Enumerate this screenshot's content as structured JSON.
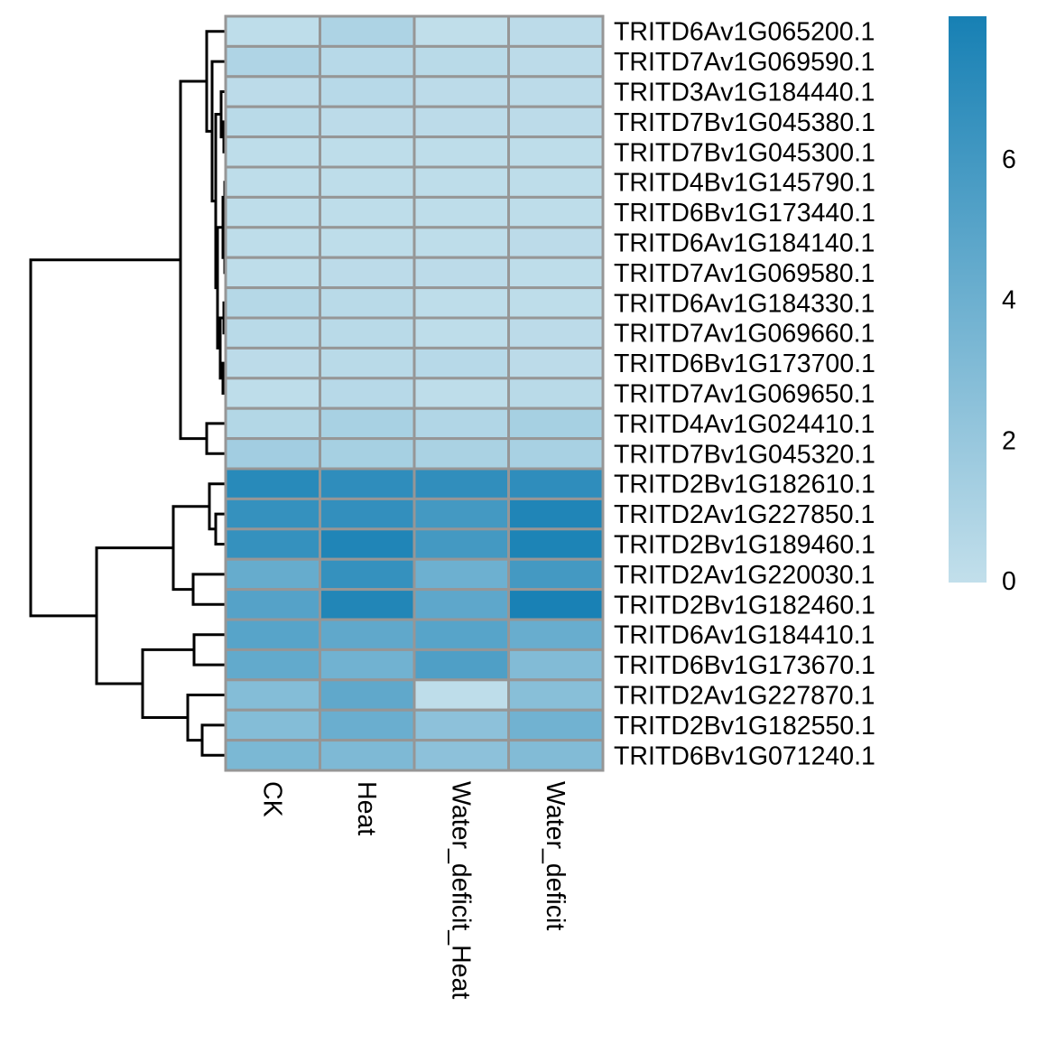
{
  "chart_data": {
    "type": "heatmap",
    "title": "",
    "columns": [
      "CK",
      "Heat",
      "Water_deficit_Heat",
      "Water_deficit"
    ],
    "rows": [
      "TRITD6Av1G065200.1",
      "TRITD7Av1G069590.1",
      "TRITD3Av1G184440.1",
      "TRITD7Bv1G045380.1",
      "TRITD7Bv1G045300.1",
      "TRITD4Bv1G145790.1",
      "TRITD6Bv1G173440.1",
      "TRITD6Av1G184140.1",
      "TRITD7Av1G069580.1",
      "TRITD6Av1G184330.1",
      "TRITD7Av1G069660.1",
      "TRITD6Bv1G173700.1",
      "TRITD7Av1G069650.1",
      "TRITD4Av1G024410.1",
      "TRITD7Bv1G045320.1",
      "TRITD2Bv1G182610.1",
      "TRITD2Av1G227850.1",
      "TRITD2Bv1G189460.1",
      "TRITD2Av1G220030.1",
      "TRITD2Bv1G182460.1",
      "TRITD6Av1G184410.1",
      "TRITD6Bv1G173670.1",
      "TRITD2Av1G227870.1",
      "TRITD2Bv1G182550.1",
      "TRITD6Bv1G071240.1"
    ],
    "values": [
      [
        0.2,
        1.0,
        0.1,
        0.3
      ],
      [
        0.9,
        0.5,
        0.4,
        0.3
      ],
      [
        0.3,
        0.5,
        0.3,
        0.3
      ],
      [
        0.4,
        0.3,
        0.3,
        0.3
      ],
      [
        0.2,
        0.2,
        0.2,
        0.2
      ],
      [
        0.2,
        0.2,
        0.2,
        0.2
      ],
      [
        0.2,
        0.2,
        0.2,
        0.2
      ],
      [
        0.2,
        0.2,
        0.2,
        0.3
      ],
      [
        0.2,
        0.3,
        0.3,
        0.2
      ],
      [
        0.6,
        0.4,
        0.2,
        0.2
      ],
      [
        0.4,
        0.4,
        0.2,
        0.3
      ],
      [
        0.3,
        0.4,
        0.5,
        0.3
      ],
      [
        0.2,
        0.5,
        0.2,
        0.4
      ],
      [
        0.7,
        1.2,
        0.8,
        1.3
      ],
      [
        1.5,
        1.3,
        1.1,
        1.2
      ],
      [
        7.2,
        6.9,
        6.8,
        6.9
      ],
      [
        6.6,
        6.7,
        5.9,
        7.6
      ],
      [
        6.6,
        7.6,
        5.9,
        7.7
      ],
      [
        4.3,
        6.6,
        4.0,
        5.9
      ],
      [
        5.1,
        7.5,
        4.7,
        7.9
      ],
      [
        5.0,
        4.6,
        5.0,
        4.2
      ],
      [
        4.5,
        3.8,
        5.4,
        3.0
      ],
      [
        2.9,
        4.6,
        0.2,
        2.7
      ],
      [
        2.9,
        4.1,
        2.5,
        3.8
      ],
      [
        3.3,
        3.2,
        2.5,
        3.0
      ]
    ],
    "color_scale": {
      "min": 0,
      "max": 8,
      "low_color": "#c2dfeb",
      "high_color": "#1780b4",
      "ticks": [
        0,
        2,
        4,
        6
      ],
      "tick_labels": [
        "0",
        "2",
        "4",
        "6"
      ]
    },
    "cell_border_color": "#969696",
    "row_dendrogram": true,
    "legend_position": "right"
  }
}
